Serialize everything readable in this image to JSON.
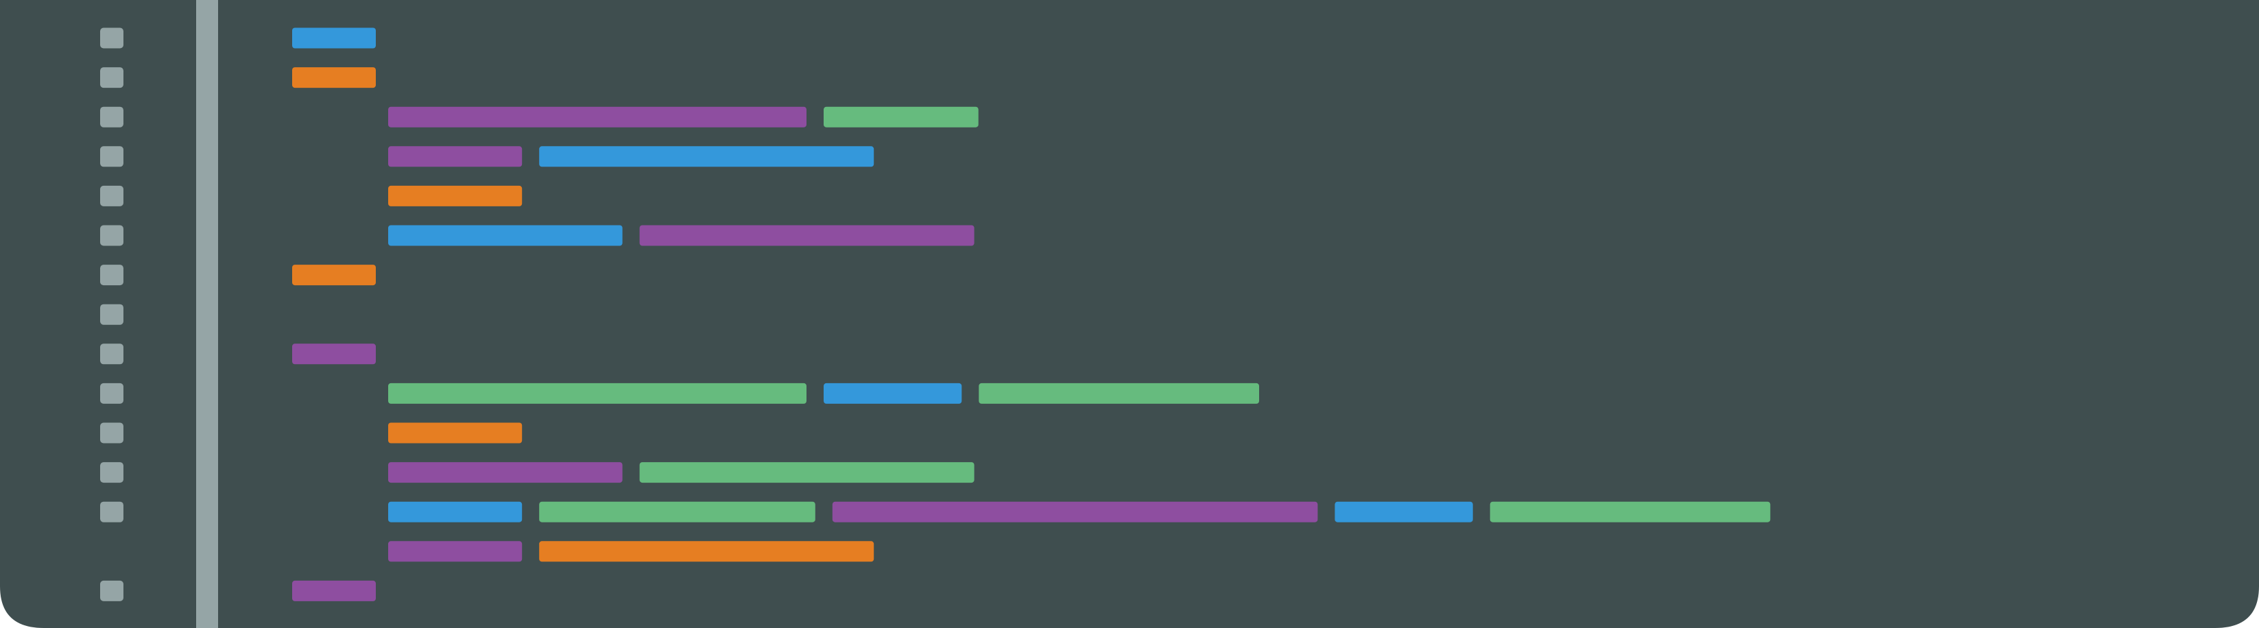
{
  "colors": {
    "background": "#3f4e4f",
    "gutter_bar": "#95a5a6",
    "line_marker": "#95a5a6",
    "blue": "#3498db",
    "orange": "#e67e22",
    "purple": "#8e4ea0",
    "green": "#66bb7e"
  },
  "editor": {
    "line_count": 15,
    "lines": [
      {
        "marker": true,
        "indent": 0,
        "tokens": [
          {
            "color": "blue",
            "length": 2
          }
        ]
      },
      {
        "marker": true,
        "indent": 0,
        "tokens": [
          {
            "color": "orange",
            "length": 2
          }
        ]
      },
      {
        "marker": true,
        "indent": 1,
        "tokens": [
          {
            "color": "purple",
            "length": 10
          },
          {
            "color": "green",
            "length": 3.7
          }
        ]
      },
      {
        "marker": true,
        "indent": 1,
        "tokens": [
          {
            "color": "purple",
            "length": 3.2
          },
          {
            "color": "blue",
            "length": 8
          }
        ]
      },
      {
        "marker": true,
        "indent": 1,
        "tokens": [
          {
            "color": "orange",
            "length": 3.2
          }
        ]
      },
      {
        "marker": true,
        "indent": 1,
        "tokens": [
          {
            "color": "blue",
            "length": 5.6
          },
          {
            "color": "purple",
            "length": 8
          }
        ]
      },
      {
        "marker": true,
        "indent": 0,
        "tokens": [
          {
            "color": "orange",
            "length": 2
          }
        ]
      },
      {
        "marker": true,
        "indent": 0,
        "tokens": []
      },
      {
        "marker": true,
        "indent": 0,
        "tokens": [
          {
            "color": "purple",
            "length": 2
          }
        ]
      },
      {
        "marker": true,
        "indent": 1,
        "tokens": [
          {
            "color": "green",
            "length": 10
          },
          {
            "color": "blue",
            "length": 3.3
          },
          {
            "color": "green",
            "length": 6.7
          }
        ]
      },
      {
        "marker": true,
        "indent": 1,
        "tokens": [
          {
            "color": "orange",
            "length": 3.2
          }
        ]
      },
      {
        "marker": true,
        "indent": 1,
        "tokens": [
          {
            "color": "purple",
            "length": 5.6
          },
          {
            "color": "green",
            "length": 8
          }
        ]
      },
      {
        "marker": true,
        "indent": 1,
        "tokens": [
          {
            "color": "blue",
            "length": 3.2
          },
          {
            "color": "green",
            "length": 6.6
          },
          {
            "color": "purple",
            "length": 11.6
          },
          {
            "color": "blue",
            "length": 3.3
          },
          {
            "color": "green",
            "length": 6.7
          }
        ]
      },
      {
        "marker": false,
        "indent": 1,
        "tokens": [
          {
            "color": "purple",
            "length": 3.2
          },
          {
            "color": "orange",
            "length": 8
          }
        ]
      },
      {
        "marker": true,
        "indent": 0,
        "tokens": [
          {
            "color": "purple",
            "length": 2
          }
        ]
      }
    ]
  }
}
